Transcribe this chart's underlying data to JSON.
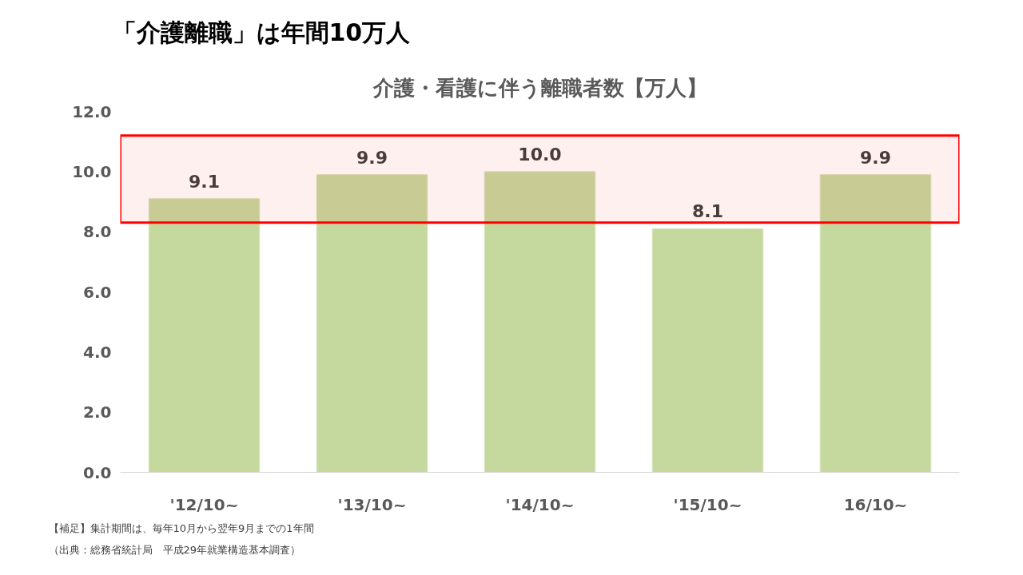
{
  "chart_data": {
    "type": "bar",
    "title": "「介護離職」は年間10万人",
    "subtitle": "介護・看護に伴う離職者数【万人】",
    "categories": [
      "'12/10~",
      "'13/10~",
      "'14/10~",
      "'15/10~",
      "16/10~"
    ],
    "values": [
      9.1,
      9.9,
      10.0,
      8.1,
      9.9
    ],
    "color": "#c5d89d",
    "value_labels": [
      "9.1",
      "9.9",
      "10.0",
      "8.1",
      "9.9"
    ],
    "ylim": [
      0,
      12
    ],
    "yticks": [
      {
        "value": 0,
        "label": "0.0"
      },
      {
        "value": 2,
        "label": "2.0"
      },
      {
        "value": 4,
        "label": "4.0"
      },
      {
        "value": 6,
        "label": "6.0"
      },
      {
        "value": 8,
        "label": "8.0"
      },
      {
        "value": 10,
        "label": "10.0"
      },
      {
        "value": 12,
        "label": "12.0"
      }
    ],
    "bands": [
      {
        "axis": "y",
        "from": 8.3,
        "to": 11.2,
        "color": "#ff0000"
      }
    ],
    "grid": false,
    "annotations": [
      "【補足】集計期間は、毎年10月から翌年9月までの1年間",
      "（出典：総務省統計局　平成29年就業構造基本調査）"
    ]
  }
}
